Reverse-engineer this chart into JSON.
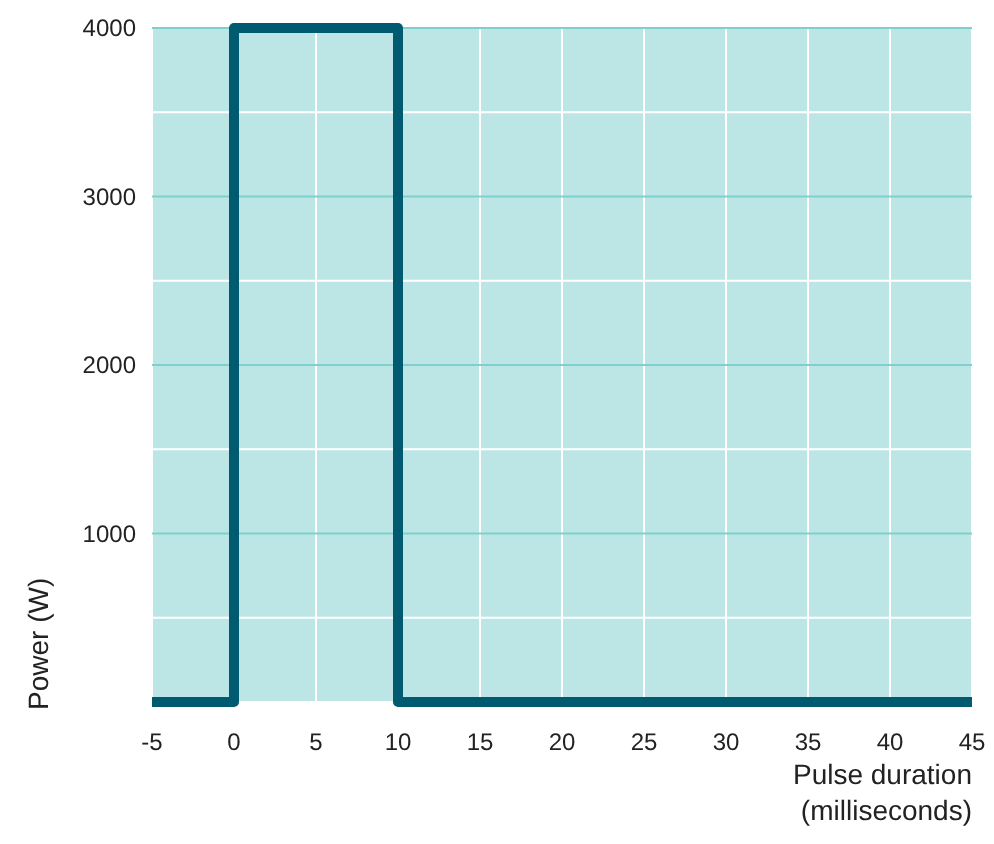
{
  "chart_data": {
    "type": "line",
    "xlabel": "Pulse duration\n(milliseconds)",
    "ylabel": "Power (W)",
    "x": [
      -5,
      0,
      0,
      10,
      10,
      45
    ],
    "series": [
      {
        "color": "#005a70",
        "values": [
          0,
          0,
          4000,
          4000,
          0,
          0
        ]
      }
    ],
    "xlim": [
      -5,
      45
    ],
    "xticks": [
      -5,
      0,
      5,
      10,
      15,
      20,
      25,
      30,
      35,
      40,
      45
    ],
    "ylim": [
      0,
      4000
    ],
    "yticks": [
      {
        "value": 0,
        "label": null
      },
      {
        "value": 500,
        "label": null
      },
      1000,
      {
        "value": 1500,
        "label": null
      },
      2000,
      {
        "value": 2500,
        "label": null
      },
      3000,
      {
        "value": 3500,
        "label": null
      },
      4000
    ],
    "grid": true,
    "marker": "none",
    "line_style": "solid"
  }
}
